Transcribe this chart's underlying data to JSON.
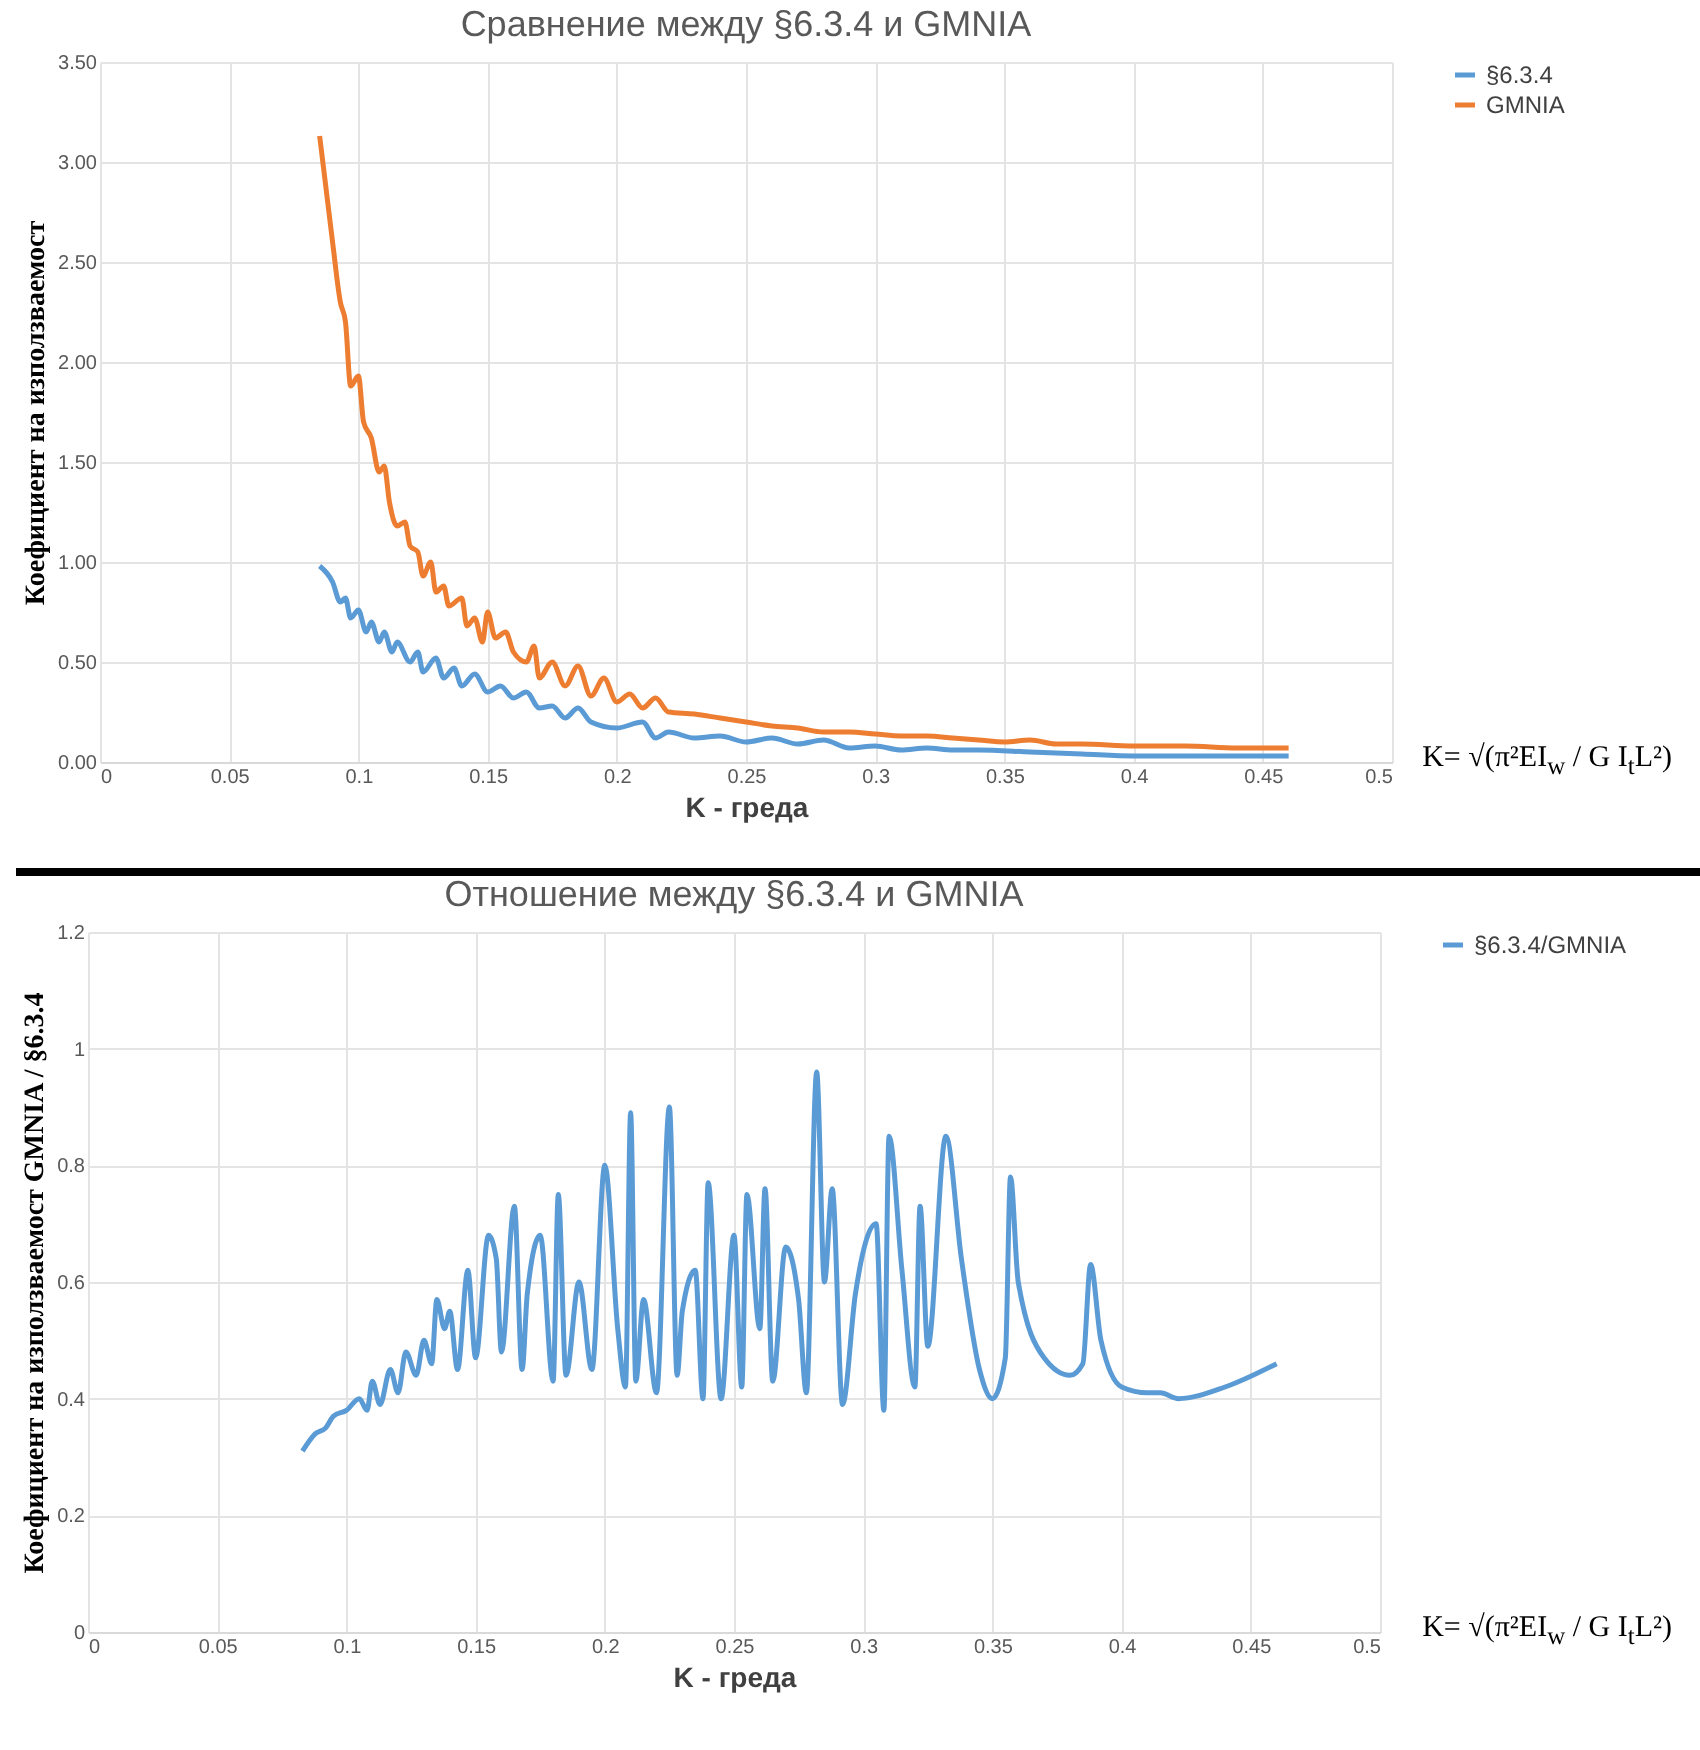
{
  "chart_data": [
    {
      "type": "line",
      "title": "Сравнение между §6.3.4 и GMNIA",
      "xlabel": "K - греда",
      "ylabel": "Коефициент на използваемост",
      "xlim": [
        0,
        0.5
      ],
      "xticks": [
        0,
        0.05,
        0.1,
        0.15,
        0.2,
        0.25,
        0.3,
        0.35,
        0.4,
        0.45,
        0.5
      ],
      "ylim": [
        0,
        3.5
      ],
      "yticks": [
        {
          "value": 0,
          "label": "0.00"
        },
        {
          "value": 0.5,
          "label": "0.50"
        },
        {
          "value": 1,
          "label": "1.00"
        },
        {
          "value": 1.5,
          "label": "1.50"
        },
        {
          "value": 2,
          "label": "2.00"
        },
        {
          "value": 2.5,
          "label": "2.50"
        },
        {
          "value": 3,
          "label": "3.00"
        },
        {
          "value": 3.5,
          "label": "3.50"
        }
      ],
      "grid": true,
      "legend": "right",
      "annotations": [
        "K= √(π²EI$_{w}$ / G I$_{t}$L²)"
      ],
      "series": [
        {
          "name": "§6.3.4",
          "color": "#5b9bd5",
          "x": [
            0.085,
            0.09,
            0.093,
            0.095,
            0.097,
            0.1,
            0.103,
            0.105,
            0.108,
            0.11,
            0.113,
            0.115,
            0.12,
            0.123,
            0.125,
            0.13,
            0.133,
            0.137,
            0.14,
            0.145,
            0.15,
            0.155,
            0.16,
            0.165,
            0.17,
            0.175,
            0.18,
            0.185,
            0.19,
            0.2,
            0.21,
            0.215,
            0.22,
            0.23,
            0.24,
            0.25,
            0.26,
            0.27,
            0.28,
            0.29,
            0.3,
            0.31,
            0.32,
            0.33,
            0.34,
            0.36,
            0.38,
            0.4,
            0.43,
            0.46
          ],
          "values": [
            0.98,
            0.9,
            0.8,
            0.82,
            0.72,
            0.76,
            0.65,
            0.7,
            0.6,
            0.65,
            0.55,
            0.6,
            0.5,
            0.55,
            0.45,
            0.52,
            0.42,
            0.47,
            0.38,
            0.44,
            0.35,
            0.38,
            0.32,
            0.35,
            0.27,
            0.28,
            0.22,
            0.27,
            0.2,
            0.17,
            0.2,
            0.12,
            0.15,
            0.12,
            0.13,
            0.1,
            0.12,
            0.09,
            0.11,
            0.07,
            0.08,
            0.06,
            0.07,
            0.06,
            0.06,
            0.05,
            0.04,
            0.03,
            0.03,
            0.03
          ]
        },
        {
          "name": "GMNIA",
          "color": "#ed7d31",
          "x": [
            0.085,
            0.09,
            0.093,
            0.095,
            0.097,
            0.1,
            0.102,
            0.105,
            0.108,
            0.11,
            0.112,
            0.115,
            0.118,
            0.12,
            0.123,
            0.125,
            0.128,
            0.13,
            0.133,
            0.135,
            0.14,
            0.142,
            0.145,
            0.148,
            0.15,
            0.153,
            0.157,
            0.16,
            0.165,
            0.168,
            0.17,
            0.175,
            0.18,
            0.185,
            0.19,
            0.195,
            0.2,
            0.205,
            0.21,
            0.215,
            0.22,
            0.23,
            0.24,
            0.25,
            0.26,
            0.27,
            0.28,
            0.29,
            0.3,
            0.31,
            0.32,
            0.33,
            0.34,
            0.35,
            0.36,
            0.37,
            0.38,
            0.4,
            0.42,
            0.44,
            0.46
          ],
          "values": [
            3.13,
            2.6,
            2.3,
            2.2,
            1.88,
            1.93,
            1.7,
            1.62,
            1.45,
            1.48,
            1.3,
            1.18,
            1.2,
            1.08,
            1.05,
            0.93,
            1.0,
            0.85,
            0.88,
            0.78,
            0.82,
            0.68,
            0.72,
            0.6,
            0.75,
            0.62,
            0.65,
            0.55,
            0.5,
            0.58,
            0.42,
            0.5,
            0.38,
            0.48,
            0.33,
            0.42,
            0.3,
            0.34,
            0.27,
            0.32,
            0.25,
            0.24,
            0.22,
            0.2,
            0.18,
            0.17,
            0.15,
            0.15,
            0.14,
            0.13,
            0.13,
            0.12,
            0.11,
            0.1,
            0.11,
            0.09,
            0.09,
            0.08,
            0.08,
            0.07,
            0.07
          ]
        }
      ]
    },
    {
      "type": "line",
      "title": "Отношение между §6.3.4 и GMNIA",
      "xlabel": "K - греда",
      "ylabel": "Коефициент на използваемост GMNIA / §6.3.4",
      "xlim": [
        0,
        0.5
      ],
      "xticks": [
        0,
        0.05,
        0.1,
        0.15,
        0.2,
        0.25,
        0.3,
        0.35,
        0.4,
        0.45,
        0.5
      ],
      "ylim": [
        0,
        1.2
      ],
      "yticks": [
        0,
        0.2,
        0.4,
        0.6,
        0.8,
        1,
        1.2
      ],
      "grid": true,
      "legend": "right",
      "annotations": [
        "K= √(π²EI$_{w}$ / G I$_{t}$L²)"
      ],
      "series": [
        {
          "name": "§6.3.4/GMNIA",
          "color": "#5b9bd5",
          "x": [
            0.083,
            0.088,
            0.092,
            0.095,
            0.1,
            0.105,
            0.108,
            0.11,
            0.113,
            0.117,
            0.12,
            0.123,
            0.127,
            0.13,
            0.133,
            0.135,
            0.138,
            0.14,
            0.143,
            0.147,
            0.15,
            0.155,
            0.158,
            0.16,
            0.165,
            0.168,
            0.17,
            0.175,
            0.18,
            0.182,
            0.185,
            0.19,
            0.195,
            0.2,
            0.205,
            0.208,
            0.21,
            0.212,
            0.215,
            0.22,
            0.225,
            0.228,
            0.23,
            0.235,
            0.238,
            0.24,
            0.245,
            0.25,
            0.253,
            0.255,
            0.26,
            0.262,
            0.265,
            0.27,
            0.275,
            0.278,
            0.282,
            0.285,
            0.288,
            0.292,
            0.297,
            0.305,
            0.308,
            0.31,
            0.315,
            0.32,
            0.322,
            0.325,
            0.332,
            0.338,
            0.345,
            0.35,
            0.355,
            0.357,
            0.36,
            0.37,
            0.38,
            0.385,
            0.388,
            0.392,
            0.4,
            0.41,
            0.415,
            0.422,
            0.44,
            0.46
          ],
          "values": [
            0.31,
            0.34,
            0.35,
            0.37,
            0.38,
            0.4,
            0.38,
            0.43,
            0.39,
            0.45,
            0.41,
            0.48,
            0.44,
            0.5,
            0.46,
            0.57,
            0.52,
            0.55,
            0.45,
            0.62,
            0.47,
            0.68,
            0.64,
            0.48,
            0.73,
            0.45,
            0.58,
            0.68,
            0.43,
            0.75,
            0.44,
            0.6,
            0.45,
            0.8,
            0.52,
            0.42,
            0.89,
            0.43,
            0.57,
            0.41,
            0.9,
            0.44,
            0.55,
            0.62,
            0.4,
            0.77,
            0.4,
            0.68,
            0.42,
            0.75,
            0.52,
            0.76,
            0.43,
            0.66,
            0.57,
            0.41,
            0.96,
            0.6,
            0.76,
            0.39,
            0.58,
            0.7,
            0.38,
            0.85,
            0.62,
            0.42,
            0.73,
            0.49,
            0.85,
            0.64,
            0.45,
            0.4,
            0.47,
            0.78,
            0.6,
            0.47,
            0.44,
            0.46,
            0.63,
            0.5,
            0.42,
            0.41,
            0.41,
            0.4,
            0.42,
            0.46
          ]
        }
      ]
    }
  ]
}
